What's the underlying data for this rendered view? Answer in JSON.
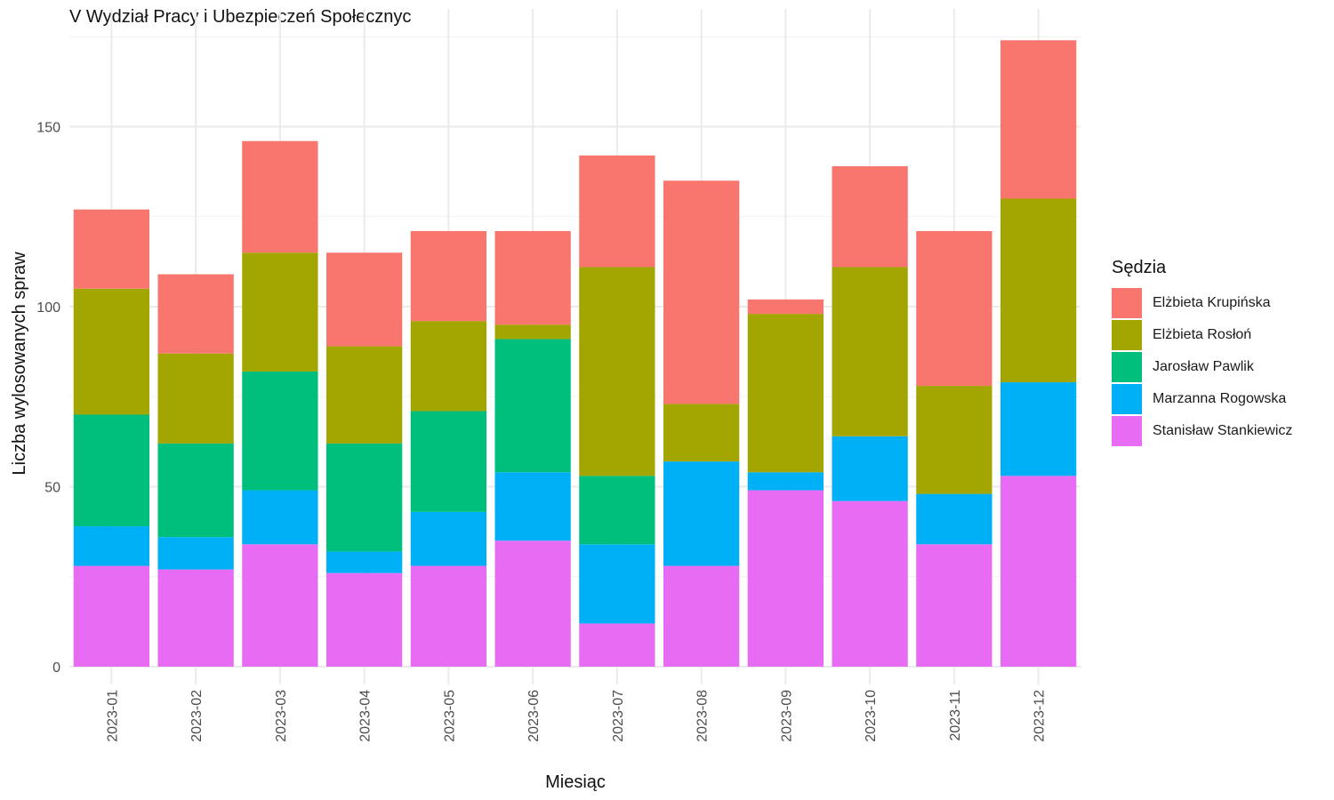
{
  "chart_data": {
    "type": "bar",
    "stacked": true,
    "title": "V Wydział Pracy i Ubezpieczeń Społecznyc",
    "xlabel": "Miesiąc",
    "ylabel": "Liczba wylosowanych spraw",
    "ylim": [
      0,
      180
    ],
    "yticks": [
      0,
      50,
      100,
      150
    ],
    "grid": true,
    "legend_title": "Sędzia",
    "legend_position": "right",
    "categories": [
      "2023-01",
      "2023-02",
      "2023-03",
      "2023-04",
      "2023-05",
      "2023-06",
      "2023-07",
      "2023-08",
      "2023-09",
      "2023-10",
      "2023-11",
      "2023-12"
    ],
    "series": [
      {
        "name": "Elżbieta Krupińska",
        "color": "#F8766D",
        "values": [
          22,
          22,
          31,
          26,
          25,
          26,
          31,
          62,
          4,
          28,
          43,
          44
        ]
      },
      {
        "name": "Elżbieta Rosłoń",
        "color": "#A3A500",
        "values": [
          35,
          25,
          33,
          27,
          25,
          4,
          58,
          16,
          44,
          47,
          30,
          51
        ]
      },
      {
        "name": "Jarosław Pawlik",
        "color": "#00BF7D",
        "values": [
          31,
          26,
          33,
          30,
          28,
          37,
          19,
          0,
          0,
          0,
          0,
          0
        ]
      },
      {
        "name": "Marzanna Rogowska",
        "color": "#00B0F6",
        "values": [
          11,
          9,
          15,
          6,
          15,
          19,
          22,
          29,
          5,
          18,
          14,
          26
        ]
      },
      {
        "name": "Stanisław Stankiewicz",
        "color": "#E76BF3",
        "values": [
          28,
          27,
          34,
          26,
          28,
          35,
          12,
          28,
          49,
          46,
          34,
          53
        ]
      }
    ]
  }
}
